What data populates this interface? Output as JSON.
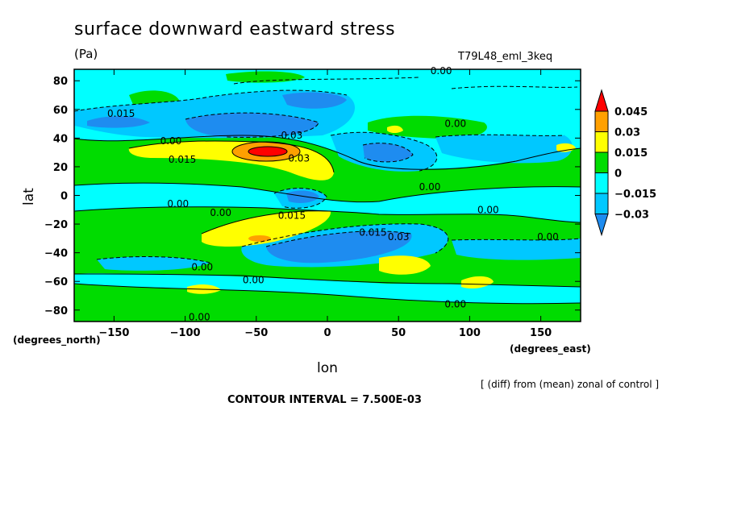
{
  "header": {
    "title": "surface downward eastward stress",
    "units": "(Pa)",
    "run_name": "T79L48_eml_3keq"
  },
  "footer": {
    "diff_note": "[ (diff) from (mean) zonal of control ]",
    "contour_interval": "CONTOUR INTERVAL = 7.500E-03"
  },
  "chart_data": {
    "type": "heatmap",
    "title": "surface downward eastward stress",
    "xlabel": "lon",
    "ylabel": "lat",
    "x_unit_label": "(degrees_east)",
    "y_unit_label": "(degrees_north)",
    "xlim": [
      -178,
      178
    ],
    "ylim": [
      -88,
      88
    ],
    "x_ticks": [
      -150,
      -100,
      -50,
      0,
      50,
      100,
      150
    ],
    "x_tick_labels": [
      "−150",
      "−100",
      "−50",
      "0",
      "50",
      "100",
      "150"
    ],
    "y_ticks": [
      -80,
      -60,
      -40,
      -20,
      0,
      20,
      40,
      60,
      80
    ],
    "y_tick_labels": [
      "−80",
      "−60",
      "−40",
      "−20",
      "0",
      "20",
      "40",
      "60",
      "80"
    ],
    "colorbar": {
      "levels": [
        -0.045,
        -0.03,
        -0.015,
        0,
        0.015,
        0.03,
        0.045
      ],
      "labels": [
        "−0.03",
        "−0.015",
        "0",
        "0.015",
        "0.03",
        "0.045"
      ],
      "colors": [
        "#1e8cf0",
        "#00c8ff",
        "#00ffff",
        "#00dc00",
        "#ffff00",
        "#ffa000",
        "#ff0000"
      ]
    },
    "contour_labels": [
      {
        "text": "0.00",
        "lon": 80,
        "lat": 87
      },
      {
        "text": "0.015",
        "lon": -145,
        "lat": 57
      },
      {
        "text": "0.00",
        "lon": 90,
        "lat": 50
      },
      {
        "text": "0.03",
        "lon": -25,
        "lat": 42
      },
      {
        "text": "0.00",
        "lon": -110,
        "lat": 38
      },
      {
        "text": "0.03",
        "lon": -20,
        "lat": 26
      },
      {
        "text": "0.015",
        "lon": -102,
        "lat": 25
      },
      {
        "text": "0.00",
        "lon": 72,
        "lat": 6
      },
      {
        "text": "0.00",
        "lon": -105,
        "lat": -6
      },
      {
        "text": "0.00",
        "lon": -75,
        "lat": -12
      },
      {
        "text": "0.015",
        "lon": -25,
        "lat": -14
      },
      {
        "text": "0.00",
        "lon": 113,
        "lat": -10
      },
      {
        "text": "0.015",
        "lon": 32,
        "lat": -26
      },
      {
        "text": "0.03",
        "lon": 50,
        "lat": -29
      },
      {
        "text": "0.00",
        "lon": 155,
        "lat": -29
      },
      {
        "text": "0.00",
        "lon": -88,
        "lat": -50
      },
      {
        "text": "0.00",
        "lon": -52,
        "lat": -59
      },
      {
        "text": "0.00",
        "lon": 90,
        "lat": -76
      },
      {
        "text": "0.00",
        "lon": -90,
        "lat": -85
      }
    ]
  }
}
